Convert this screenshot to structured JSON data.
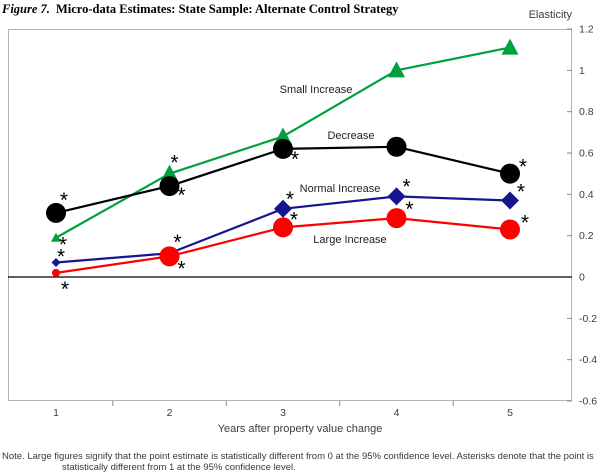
{
  "header": {
    "figure_label": "Figure 7.",
    "title": "Micro-data Estimates: State Sample: Alternate Control Strategy"
  },
  "chart_data": {
    "type": "line",
    "y_axis": {
      "label": "Elasticity",
      "max": 1.2,
      "min": -0.6,
      "tick_values": [
        1.2,
        1,
        0.8,
        0.6,
        0.4,
        0.2,
        0,
        -0.2,
        -0.4,
        -0.6
      ],
      "tick_labels": [
        "1.2",
        "1",
        "0.8",
        "0.6",
        "0.4",
        "0.2",
        "0",
        "-0.2",
        "-0.4",
        "-0.6"
      ]
    },
    "x_axis": {
      "title": "Years after property value change",
      "categories": [
        "1",
        "2",
        "3",
        "4",
        "5"
      ]
    },
    "zero_line": true,
    "legend_position": "inline-labels",
    "series": [
      {
        "name": "Small Increase",
        "color": "#00a03c",
        "marker": "triangle",
        "values": [
          0.19,
          0.5,
          0.68,
          1.0,
          1.11
        ],
        "significant_from_0": [
          false,
          true,
          true,
          true,
          true
        ],
        "asterisks": [
          [
            7,
            5
          ],
          [
            5,
            -13
          ],
          null,
          null,
          null
        ],
        "label_pos": [
          316,
          89
        ]
      },
      {
        "name": "Decrease",
        "color": "#000000",
        "marker": "circle",
        "values": [
          0.31,
          0.44,
          0.62,
          0.63,
          0.5
        ],
        "significant_from_0": [
          true,
          true,
          true,
          true,
          true
        ],
        "asterisks": [
          [
            8,
            -15
          ],
          [
            12,
            7
          ],
          [
            12,
            8
          ],
          null,
          [
            13,
            -9
          ]
        ],
        "label_pos": [
          351,
          135
        ]
      },
      {
        "name": "Normal Increase",
        "color": "#16168f",
        "marker": "diamond",
        "values": [
          0.07,
          0.115,
          0.33,
          0.39,
          0.37
        ],
        "significant_from_0": [
          false,
          false,
          true,
          true,
          true
        ],
        "asterisks": [
          [
            5,
            -8
          ],
          [
            8,
            -13
          ],
          [
            7,
            -12
          ],
          [
            10,
            -12
          ],
          [
            11,
            -11
          ]
        ],
        "label_pos": [
          340,
          188
        ]
      },
      {
        "name": "Large Increase",
        "color": "#ff0000",
        "marker": "circle",
        "values": [
          0.02,
          0.1,
          0.24,
          0.285,
          0.23
        ],
        "significant_from_0": [
          false,
          true,
          true,
          true,
          true
        ],
        "asterisks": [
          [
            9,
            14
          ],
          [
            12,
            10
          ],
          [
            11,
            -10
          ],
          [
            13,
            -11
          ],
          [
            15,
            -9
          ]
        ],
        "label_pos": [
          350,
          239
        ]
      }
    ]
  },
  "note": {
    "line1": "Note. Large figures signify that the point estimate is statistically different from 0 at the 95% confidence level.  Asterisks denote that the point is",
    "line2": "statistically different from 1 at the 95% confidence level."
  }
}
